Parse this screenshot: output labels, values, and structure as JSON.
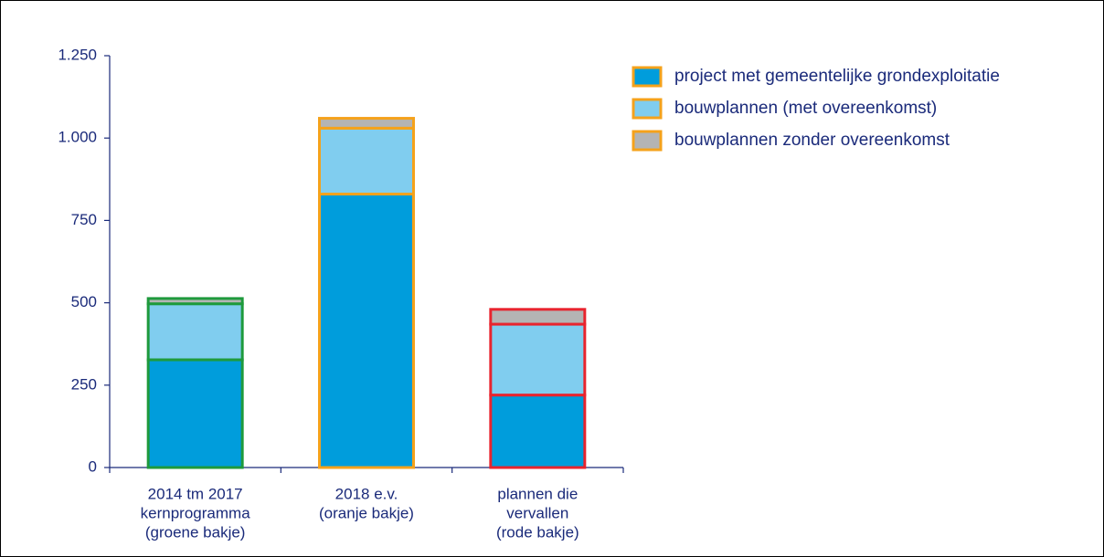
{
  "chart_data": {
    "type": "stacked_bar",
    "categories": [
      [
        "2014 tm 2017",
        "kernprogramma",
        "(groene bakje)"
      ],
      [
        "2018 e.v.",
        "(oranje bakje)"
      ],
      [
        "plannen die",
        "vervallen",
        "(rode bakje)"
      ]
    ],
    "series": [
      {
        "name": "project met gemeentelijke grondexploitatie",
        "color": "#009ddc",
        "values": [
          327,
          830,
          220
        ]
      },
      {
        "name": "bouwplannen (met overeenkomst)",
        "color": "#80cdef",
        "values": [
          170,
          200,
          215
        ]
      },
      {
        "name": "bouwplannen zonder overeenkomst",
        "color": "#b4b4b4",
        "values": [
          16,
          30,
          45
        ]
      }
    ],
    "outline_colors": [
      "#1e9a3c",
      "#f5a21b",
      "#e8242e"
    ],
    "legend_border_color": "#f5a21b",
    "ylim": [
      0,
      1250
    ],
    "yticks": [
      0,
      250,
      500,
      750,
      {
        "value": 1000,
        "label": "1.000"
      },
      {
        "value": 1250,
        "label": "1.250"
      }
    ],
    "legend": "upper right"
  }
}
